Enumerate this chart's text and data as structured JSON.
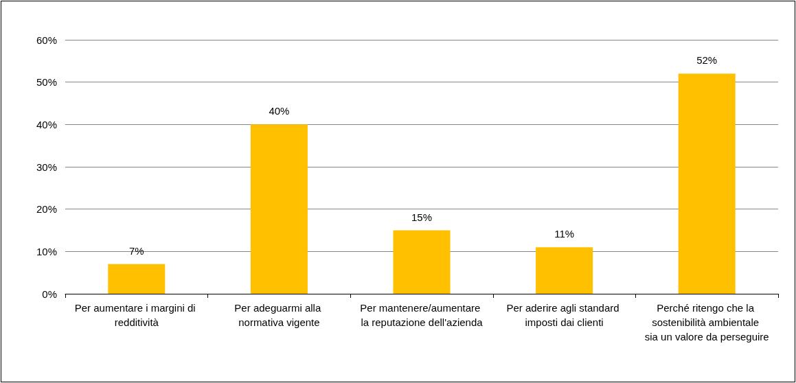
{
  "chart_data": {
    "type": "bar",
    "categories": [
      "Per aumentare i margini di redditività",
      "Per adeguarmi alla normativa vigente",
      "Per mantenere/aumentare la reputazione dell'azienda",
      "Per aderire agli standard imposti dai clienti",
      "Perché ritengo che la sostenibilità ambientale sia un valore da perseguire"
    ],
    "values": [
      7,
      40,
      15,
      11,
      52
    ],
    "value_labels": [
      "7%",
      "40%",
      "15%",
      "11%",
      "52%"
    ],
    "color": "#ffc000",
    "ylim": [
      0,
      60
    ],
    "yticks": [
      {
        "value": 0,
        "label": "0%"
      },
      {
        "value": 10,
        "label": "10%"
      },
      {
        "value": 20,
        "label": "20%"
      },
      {
        "value": 30,
        "label": "30%"
      },
      {
        "value": 40,
        "label": "40%"
      },
      {
        "value": 50,
        "label": "50%"
      },
      {
        "value": 60,
        "label": "60%"
      }
    ],
    "grid": "y"
  }
}
